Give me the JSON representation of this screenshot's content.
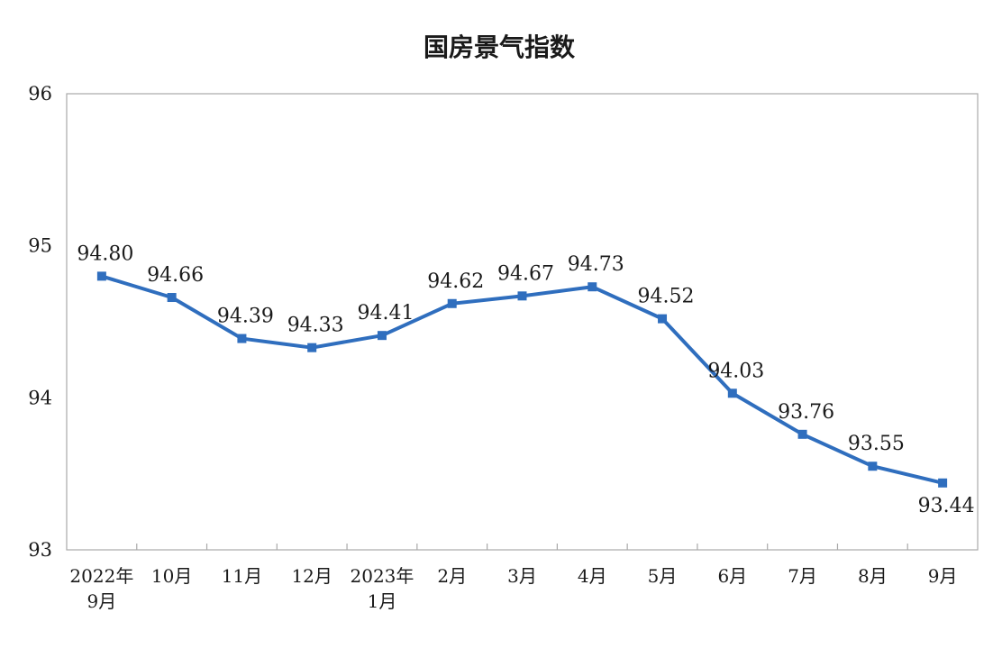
{
  "chart_data": {
    "type": "line",
    "title": "国房景气指数",
    "xlabel": "",
    "ylabel": "",
    "ylim": [
      93,
      96
    ],
    "yticks": [
      "93",
      "94",
      "95",
      "96"
    ],
    "categories": [
      [
        "2022年",
        "9月"
      ],
      [
        "10月"
      ],
      [
        "11月"
      ],
      [
        "12月"
      ],
      [
        "2023年",
        "1月"
      ],
      [
        "2月"
      ],
      [
        "3月"
      ],
      [
        "4月"
      ],
      [
        "5月"
      ],
      [
        "6月"
      ],
      [
        "7月"
      ],
      [
        "8月"
      ],
      [
        "9月"
      ]
    ],
    "series": [
      {
        "values": [
          94.8,
          94.66,
          94.39,
          94.33,
          94.41,
          94.62,
          94.67,
          94.73,
          94.52,
          94.03,
          93.76,
          93.55,
          93.44
        ],
        "labels": [
          "94.80",
          "94.66",
          "94.39",
          "94.33",
          "94.41",
          "94.62",
          "94.67",
          "94.73",
          "94.52",
          "94.03",
          "93.76",
          "93.55",
          "93.44"
        ],
        "color": "#2f6ebe"
      }
    ],
    "grid": false,
    "legend": "none"
  }
}
